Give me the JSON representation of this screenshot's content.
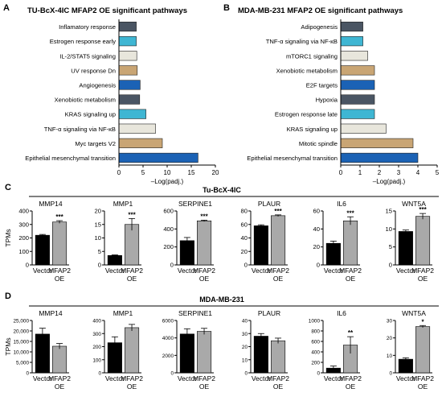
{
  "panels": [
    {
      "letter": "A",
      "title": "TU-BcX-4IC MFAP2 OE significant pathways"
    },
    {
      "letter": "B",
      "title": "MDA-MB-231 MFAP2 OE significant pathways"
    },
    {
      "letter": "C",
      "title": "Tu-BcX-4IC"
    },
    {
      "letter": "D",
      "title": "MDA-MB-231"
    }
  ],
  "colors": {
    "dark_slate": "#4a5563",
    "cyan": "#3fb6d3",
    "beige": "#e8e6dc",
    "tan": "#c9a574",
    "blue": "#1b62b5",
    "black_bar": "#000000",
    "gray_bar": "#a9a9a9"
  },
  "chart_data": [
    {
      "type": "bar",
      "orientation": "horizontal",
      "title": "TU-BcX-4IC MFAP2 OE significant pathways",
      "xlabel": "–Log(padj.)",
      "xlim": [
        0,
        20
      ],
      "xticks": [
        0,
        5,
        10,
        15,
        20
      ],
      "categories": [
        "Inflamatory response",
        "Estrogen response early",
        "IL-2/STAT5 signaling",
        "UV response Dn",
        "Angiogenesis",
        "Xenobiotic metabolism",
        "KRAS signaling up",
        "TNF-α signaling via NF-κB",
        "Myc targets V2",
        "Epithelial mesenchymal transition"
      ],
      "values": [
        3.6,
        3.6,
        3.7,
        3.8,
        4.4,
        4.3,
        5.6,
        7.6,
        9.0,
        16.4
      ],
      "bar_colors": [
        "#4a5563",
        "#3fb6d3",
        "#e8e6dc",
        "#c9a574",
        "#1b62b5",
        "#4a5563",
        "#3fb6d3",
        "#e8e6dc",
        "#c9a574",
        "#1b62b5"
      ]
    },
    {
      "type": "bar",
      "orientation": "horizontal",
      "title": "MDA-MB-231 MFAP2 OE significant pathways",
      "xlabel": "–Log(padj.)",
      "xlim": [
        0,
        5
      ],
      "xticks": [
        0,
        1,
        2,
        3,
        4,
        5
      ],
      "categories": [
        "Adipogenesis",
        "TNF-α signaling via NF-κB",
        "mTORC1 signaling",
        "Xenobiotic metabolism",
        "E2F targets",
        "Hypoxia",
        "Estrogen response late",
        "KRAS signaling up",
        "Mitotic spindle",
        "Epithelial mesenchymal transition"
      ],
      "values": [
        1.15,
        1.15,
        1.4,
        1.75,
        1.75,
        1.75,
        1.75,
        2.35,
        3.75,
        4.0
      ],
      "bar_colors": [
        "#4a5563",
        "#3fb6d3",
        "#e8e6dc",
        "#c9a574",
        "#1b62b5",
        "#4a5563",
        "#3fb6d3",
        "#e8e6dc",
        "#c9a574",
        "#1b62b5"
      ]
    },
    {
      "type": "bar",
      "group_title": "Tu-BcX-4IC",
      "ylabel": "TPMs",
      "categories": [
        "Vector",
        "MFAP2\nOE"
      ],
      "subplots": [
        {
          "gene": "MMP14",
          "ylim": [
            0,
            400
          ],
          "yticks": [
            0,
            100,
            200,
            300,
            400
          ],
          "values": [
            220,
            318
          ],
          "errors": [
            6,
            10
          ],
          "sig": "***"
        },
        {
          "gene": "MMP1",
          "ylim": [
            0,
            20
          ],
          "yticks": [
            0,
            5,
            10,
            15,
            20
          ],
          "values": [
            3.5,
            15
          ],
          "errors": [
            0.2,
            2.2
          ],
          "sig": "***"
        },
        {
          "gene": "SERPINE1",
          "ylim": [
            0,
            600
          ],
          "yticks": [
            0,
            200,
            400,
            600
          ],
          "values": [
            270,
            490
          ],
          "errors": [
            35,
            8
          ],
          "sig": "***"
        },
        {
          "gene": "PLAUR",
          "ylim": [
            0,
            80
          ],
          "yticks": [
            0,
            20,
            40,
            60,
            80
          ],
          "values": [
            58,
            73
          ],
          "errors": [
            1.5,
            1.2
          ],
          "sig": "***"
        },
        {
          "gene": "IL6",
          "ylim": [
            0,
            60
          ],
          "yticks": [
            0,
            20,
            40,
            60
          ],
          "values": [
            24,
            49
          ],
          "errors": [
            2.5,
            4.5
          ],
          "sig": "***"
        },
        {
          "gene": "WNT5A",
          "ylim": [
            0,
            15
          ],
          "yticks": [
            0,
            5,
            10,
            15
          ],
          "values": [
            9.3,
            13.5
          ],
          "errors": [
            0.4,
            0.8
          ],
          "sig": "***"
        }
      ]
    },
    {
      "type": "bar",
      "group_title": "MDA-MB-231",
      "ylabel": "TPMs",
      "categories": [
        "Vector",
        "MFAP2\nOE"
      ],
      "subplots": [
        {
          "gene": "MMP14",
          "ylim": [
            0,
            25000
          ],
          "yticks": [
            0,
            5000,
            10000,
            15000,
            20000,
            25000
          ],
          "tick_labels": [
            "0",
            "5,000",
            "10,000",
            "15,000",
            "20,000",
            "25,000"
          ],
          "values": [
            18500,
            12700
          ],
          "errors": [
            2800,
            1300
          ],
          "sig": ""
        },
        {
          "gene": "MMP1",
          "ylim": [
            0,
            400
          ],
          "yticks": [
            0,
            100,
            200,
            300,
            400
          ],
          "values": [
            230,
            345
          ],
          "errors": [
            45,
            25
          ],
          "sig": ""
        },
        {
          "gene": "SERPINE1",
          "ylim": [
            0,
            6000
          ],
          "yticks": [
            0,
            2000,
            4000,
            6000
          ],
          "values": [
            4450,
            4750
          ],
          "errors": [
            600,
            350
          ],
          "sig": ""
        },
        {
          "gene": "PLAUR",
          "ylim": [
            0,
            40
          ],
          "yticks": [
            0,
            10,
            20,
            30,
            40
          ],
          "values": [
            28,
            24.5
          ],
          "errors": [
            2,
            2
          ],
          "sig": ""
        },
        {
          "gene": "IL6",
          "ylim": [
            0,
            1000
          ],
          "yticks": [
            0,
            200,
            400,
            600,
            800,
            1000
          ],
          "values": [
            90,
            530
          ],
          "errors": [
            40,
            160
          ],
          "sig": "**"
        },
        {
          "gene": "WNT5A",
          "ylim": [
            0,
            30
          ],
          "yticks": [
            0,
            10,
            20,
            30
          ],
          "values": [
            7.8,
            26.5
          ],
          "errors": [
            0.8,
            0.6
          ],
          "sig": "*"
        }
      ]
    }
  ]
}
